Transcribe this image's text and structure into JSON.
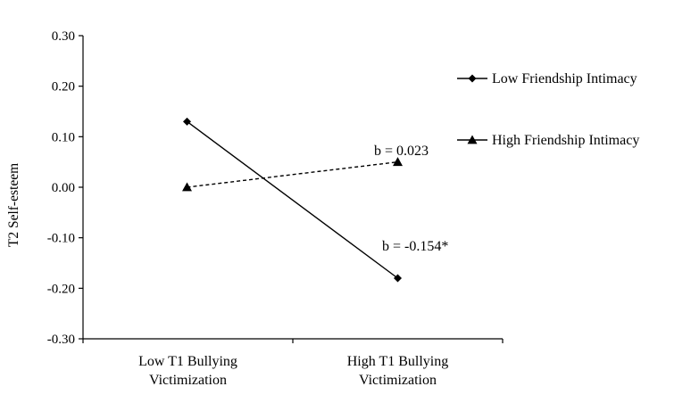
{
  "chart_data": {
    "type": "line",
    "title": "",
    "xlabel": "",
    "ylabel": "T2 Self-esteem",
    "ylim": [
      -0.3,
      0.3
    ],
    "yticks": [
      "0.30",
      "0.20",
      "0.10",
      "0.00",
      "-0.10",
      "-0.20",
      "-0.30"
    ],
    "categories": [
      [
        "Low T1 Bullying",
        "Victimization"
      ],
      [
        "High T1 Bullying",
        "Victimization"
      ]
    ],
    "series": [
      {
        "name": "Low Friendship Intimacy",
        "values": [
          0.13,
          -0.18
        ],
        "marker": "diamond",
        "line": "solid",
        "color": "#000000"
      },
      {
        "name": "High Friendship Intimacy",
        "values": [
          0.0,
          0.05
        ],
        "marker": "triangle",
        "line": "dashed",
        "color": "#000000"
      }
    ],
    "annotations": [
      {
        "text": "b = 0.023",
        "series": 1
      },
      {
        "text": "b = -0.154*",
        "series": 0
      }
    ],
    "legend_position": "right",
    "grid": false
  }
}
